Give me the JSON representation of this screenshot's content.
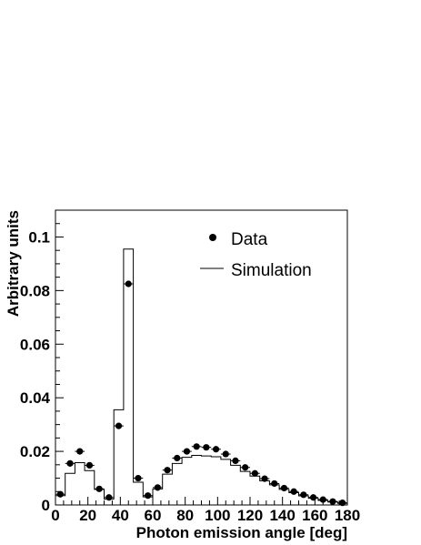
{
  "chart_data": {
    "type": "histogram",
    "title": "",
    "xlabel": "Photon emission angle [deg]",
    "ylabel": "Arbitrary units",
    "xlim": [
      0,
      180
    ],
    "ylim": [
      0,
      0.11
    ],
    "x_ticks": [
      "0",
      "20",
      "40",
      "60",
      "80",
      "100",
      "120",
      "140",
      "160",
      "180"
    ],
    "y_ticks": [
      "0",
      "0.02",
      "0.04",
      "0.06",
      "0.08",
      "0.1"
    ],
    "bin_width": 6,
    "legend": {
      "position": "top-right",
      "entries": [
        "Data",
        "Simulation"
      ]
    },
    "series": [
      {
        "name": "Data",
        "style": "markers",
        "x": [
          3,
          9,
          15,
          21,
          27,
          33,
          39,
          45,
          51,
          57,
          63,
          69,
          75,
          81,
          87,
          93,
          99,
          105,
          111,
          117,
          123,
          129,
          135,
          141,
          147,
          153,
          159,
          165,
          171,
          177
        ],
        "values": [
          0.004,
          0.0155,
          0.02,
          0.0148,
          0.006,
          0.0028,
          0.0295,
          0.0825,
          0.01,
          0.0035,
          0.0065,
          0.013,
          0.0175,
          0.02,
          0.0218,
          0.0215,
          0.0208,
          0.019,
          0.0165,
          0.014,
          0.0118,
          0.0098,
          0.008,
          0.0063,
          0.005,
          0.0038,
          0.0028,
          0.002,
          0.0013,
          0.0008
        ]
      },
      {
        "name": "Simulation",
        "style": "step",
        "x": [
          3,
          9,
          15,
          21,
          27,
          33,
          39,
          45,
          51,
          57,
          63,
          69,
          75,
          81,
          87,
          93,
          99,
          105,
          111,
          117,
          123,
          129,
          135,
          141,
          147,
          153,
          159,
          165,
          171,
          177
        ],
        "values": [
          0.0035,
          0.0118,
          0.0158,
          0.0128,
          0.0058,
          0.0022,
          0.0355,
          0.0955,
          0.0085,
          0.003,
          0.006,
          0.0115,
          0.0155,
          0.0178,
          0.0185,
          0.0183,
          0.018,
          0.017,
          0.0148,
          0.0125,
          0.0108,
          0.009,
          0.0075,
          0.0058,
          0.0046,
          0.0034,
          0.0025,
          0.0017,
          0.0011,
          0.0006
        ]
      }
    ]
  }
}
